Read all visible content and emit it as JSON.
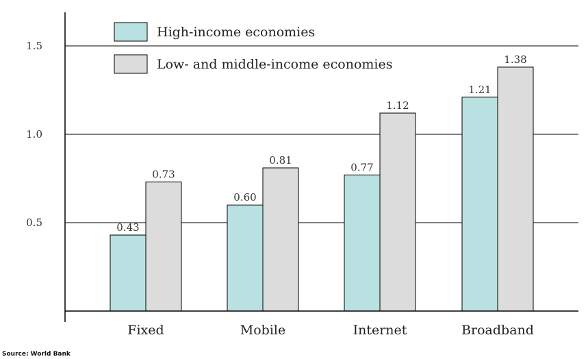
{
  "chart_data": {
    "type": "bar",
    "title": "",
    "xlabel": "",
    "ylabel": "",
    "categories": [
      "Fixed",
      "Mobile",
      "Internet",
      "Broadband"
    ],
    "series": [
      {
        "name": "High-income economies",
        "color": "#b9e1e1",
        "values": [
          0.43,
          0.6,
          0.77,
          1.21
        ],
        "labels": [
          "0.43",
          "0.60",
          "0.77",
          "1.21"
        ]
      },
      {
        "name": "Low- and middle-income economies",
        "color": "#dcdcdc",
        "values": [
          0.73,
          0.81,
          1.12,
          1.38
        ],
        "labels": [
          "0.73",
          "0.81",
          "1.12",
          "1.38"
        ]
      }
    ],
    "ylim": [
      0,
      1.7
    ],
    "yticks": [
      0.5,
      1.0,
      1.5
    ],
    "ytick_labels": [
      "0.5",
      "1.0",
      "1.5"
    ],
    "grid": true,
    "legend": "top-left",
    "source": "Source: World Bank"
  }
}
